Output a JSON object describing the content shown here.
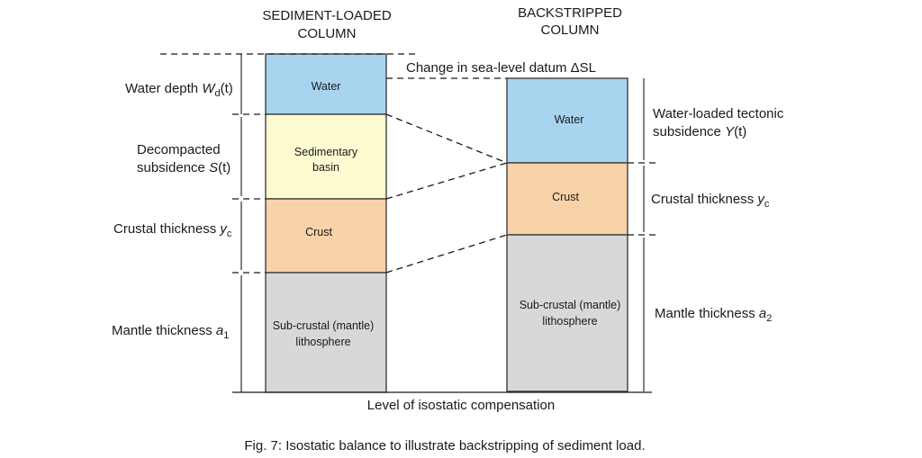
{
  "headings": {
    "left": [
      "SEDIMENT-LOADED",
      "COLUMN"
    ],
    "right": [
      "BACKSTRIPPED",
      "COLUMN"
    ]
  },
  "left_column": {
    "water": "Water",
    "sediment": [
      "Sedimentary",
      "basin"
    ],
    "crust": "Crust",
    "mantle": [
      "Sub-crustal (mantle)",
      "lithosphere"
    ]
  },
  "right_column": {
    "water": "Water",
    "crust": "Crust",
    "mantle": [
      "Sub-crustal (mantle)",
      "lithosphere"
    ]
  },
  "left_labels": {
    "water_depth": {
      "text": "Water depth ",
      "var": "W",
      "sub": "d",
      "suffix": "(t)"
    },
    "subsidence": {
      "line1": "Decompacted",
      "line2": "subsidence ",
      "var": "S",
      "suffix": "(t)"
    },
    "crust": {
      "text": "Crustal thickness ",
      "var": "y",
      "sub": "c"
    },
    "mantle": {
      "text": "Mantle thickness ",
      "var": "a",
      "sub": "1"
    }
  },
  "right_labels": {
    "tectonic": {
      "line1": "Water-loaded tectonic",
      "line2": "subsidence ",
      "var": "Y",
      "suffix": "(t)"
    },
    "crust": {
      "text": "Crustal thickness ",
      "var": "y",
      "sub": "c"
    },
    "mantle": {
      "text": "Mantle thickness ",
      "var": "a",
      "sub": "2"
    }
  },
  "sea_level": {
    "text": "Change in sea-level datum ",
    "symbol": "ΔSL"
  },
  "compensation": "Level of isostatic compensation",
  "caption": "Fig. 7: Isostatic balance to illustrate backstripping of sediment load.",
  "colors": {
    "water": "#a8d4f0",
    "sediment": "#fdfbd0",
    "crust": "#f8d2a8",
    "mantle": "#d9d8d8"
  }
}
